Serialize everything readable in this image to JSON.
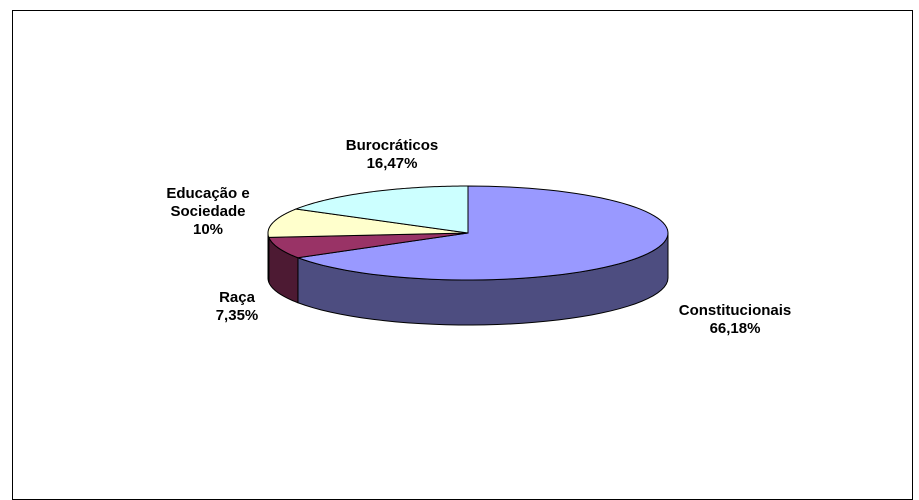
{
  "chart_data": {
    "type": "pie3d",
    "categories": [
      "Constitucionais",
      "Raça",
      "Educação e Sociedade",
      "Burocráticos"
    ],
    "values": [
      66.18,
      7.35,
      10,
      16.47
    ],
    "value_labels": [
      "66,18%",
      "7,35%",
      "10%",
      "16,47%"
    ],
    "colors": [
      "#9999ff",
      "#993366",
      "#ffffcc",
      "#ccffff"
    ]
  }
}
